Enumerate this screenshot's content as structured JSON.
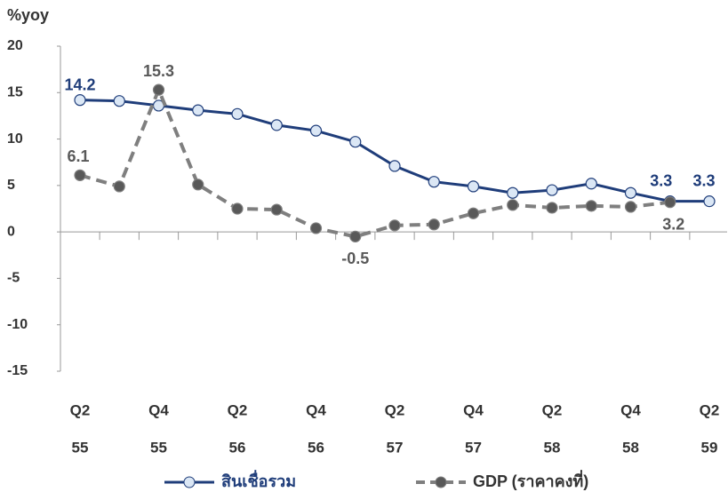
{
  "chart_data": {
    "type": "line",
    "y_label": "%yoy",
    "categories": [
      "Q2",
      null,
      "Q4",
      null,
      "Q2",
      null,
      "Q4",
      null,
      "Q2",
      null,
      "Q4",
      null,
      "Q2",
      null,
      "Q4",
      null,
      "Q2"
    ],
    "category_years": [
      "55",
      null,
      "55",
      null,
      "56",
      null,
      "56",
      null,
      "57",
      null,
      "57",
      null,
      "58",
      null,
      "58",
      null,
      "59"
    ],
    "series": [
      {
        "name": "สินเชื่อรวม",
        "color": "#1f3d7a",
        "marker_fill": "#dbe7f5",
        "dash": false,
        "values": [
          14.2,
          14.1,
          13.6,
          13.1,
          12.7,
          11.5,
          10.9,
          9.7,
          7.1,
          5.4,
          4.9,
          4.2,
          4.5,
          5.2,
          4.2,
          3.3,
          3.3
        ],
        "data_labels": [
          0,
          15,
          16
        ]
      },
      {
        "name": "GDP (ราคาคงที่)",
        "color": "#7f7f7f",
        "marker_fill": "#595959",
        "dash": true,
        "values": [
          6.1,
          4.9,
          15.3,
          5.1,
          2.5,
          2.4,
          0.4,
          -0.5,
          0.7,
          0.8,
          2.0,
          2.9,
          2.6,
          2.8,
          2.7,
          3.2,
          null
        ],
        "data_labels": [
          0,
          2,
          7,
          15
        ]
      }
    ],
    "ylim": [
      -15,
      20
    ],
    "yticks": [
      -15,
      -10,
      -5,
      0,
      5,
      10,
      15,
      20
    ],
    "grid": false,
    "legend": "bottom"
  }
}
